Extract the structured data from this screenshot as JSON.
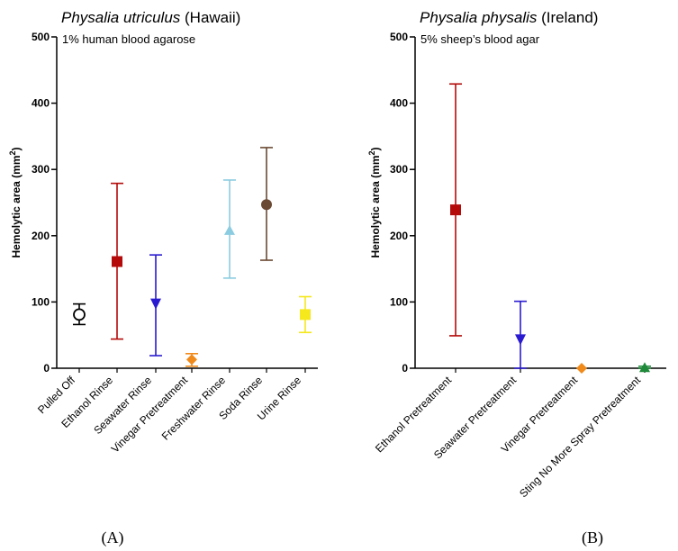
{
  "chart_data": [
    {
      "type": "scatter",
      "title_italic": "Physalia utriculus",
      "title_rest": " (Hawaii)",
      "subtitle": "1% human blood agarose",
      "ylabel_main": "Hemolytic area (mm",
      "ylabel_sup": "2",
      "ylabel_end": ")",
      "ylim": [
        0,
        500
      ],
      "yticks": [
        "0",
        "100",
        "200",
        "300",
        "400",
        "500"
      ],
      "categories": [
        "Pulled Off",
        "Ethanol Rinse",
        "Seawater Rinse",
        "Vinegar Pretreatment",
        "Freshwater Rinse",
        "Soda Rinse",
        "Urine Rinse"
      ],
      "points": [
        {
          "mean": 81,
          "low": 66,
          "high": 97,
          "marker": "open-circle",
          "color": "#000000"
        },
        {
          "mean": 161,
          "low": 44,
          "high": 279,
          "marker": "square",
          "color": "#b40a0a"
        },
        {
          "mean": 97,
          "low": 19,
          "high": 171,
          "marker": "down-triangle",
          "color": "#2a1bd0"
        },
        {
          "mean": 13,
          "low": 3,
          "high": 22,
          "marker": "diamond",
          "color": "#f08a1a"
        },
        {
          "mean": 208,
          "low": 136,
          "high": 284,
          "marker": "up-triangle",
          "color": "#8ccce0"
        },
        {
          "mean": 247,
          "low": 163,
          "high": 333,
          "marker": "circle",
          "color": "#6b4a34"
        },
        {
          "mean": 81,
          "low": 54,
          "high": 108,
          "marker": "square",
          "color": "#f5e81c"
        }
      ],
      "panel_label": "(A)"
    },
    {
      "type": "scatter",
      "title_italic": "Physalia physalis",
      "title_rest": " (Ireland)",
      "subtitle": "5% sheep’s blood agar",
      "ylabel_main": "Hemolytic area (mm",
      "ylabel_sup": "2",
      "ylabel_end": ")",
      "ylim": [
        0,
        500
      ],
      "yticks": [
        "0",
        "100",
        "200",
        "300",
        "400",
        "500"
      ],
      "categories": [
        "Ethanol Pretreatment",
        "Seawater Pretreatment",
        "Vinegar Pretreatment",
        "Sting No More Spray Pretreatment"
      ],
      "points": [
        {
          "mean": 239,
          "low": 49,
          "high": 429,
          "marker": "square",
          "color": "#b40a0a"
        },
        {
          "mean": 43,
          "low": 0,
          "high": 101,
          "marker": "down-triangle",
          "color": "#2a1bd0"
        },
        {
          "mean": 0,
          "low": 0,
          "high": 0,
          "marker": "diamond",
          "color": "#f08a1a"
        },
        {
          "mean": 1,
          "low": 0,
          "high": 3,
          "marker": "up-triangle",
          "color": "#1f8a3a"
        }
      ],
      "panel_label": "(B)"
    }
  ]
}
